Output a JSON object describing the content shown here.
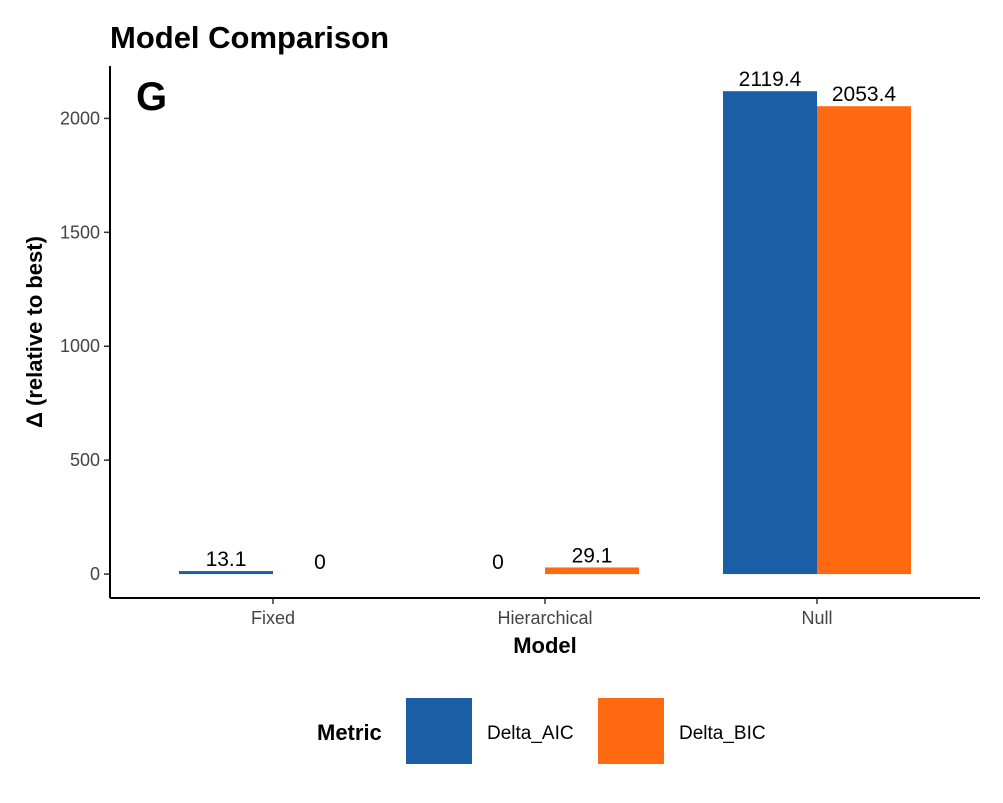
{
  "chart_data": {
    "type": "bar",
    "title": "Model Comparison",
    "panel_tag": "G",
    "xlabel": "Model",
    "ylabel": "Δ (relative to best)",
    "categories": [
      "Fixed",
      "Hierarchical",
      "Null"
    ],
    "series": [
      {
        "name": "Delta_AIC",
        "color": "#1a5fa6",
        "values": [
          13.1,
          0,
          2119.4
        ],
        "labels": [
          "13.1",
          "0",
          "2119.4"
        ]
      },
      {
        "name": "Delta_BIC",
        "color": "#ff6a10",
        "values": [
          0,
          29.1,
          2053.4
        ],
        "labels": [
          "0",
          "29.1",
          "2053.4"
        ]
      }
    ],
    "ylim": [
      -105,
      2230
    ],
    "yticks": [
      0,
      500,
      1000,
      1500,
      2000
    ],
    "ytick_labels": [
      "0",
      "500",
      "1000",
      "1500",
      "2000"
    ],
    "grid": false,
    "legend": {
      "title": "Metric",
      "position": "bottom"
    }
  }
}
